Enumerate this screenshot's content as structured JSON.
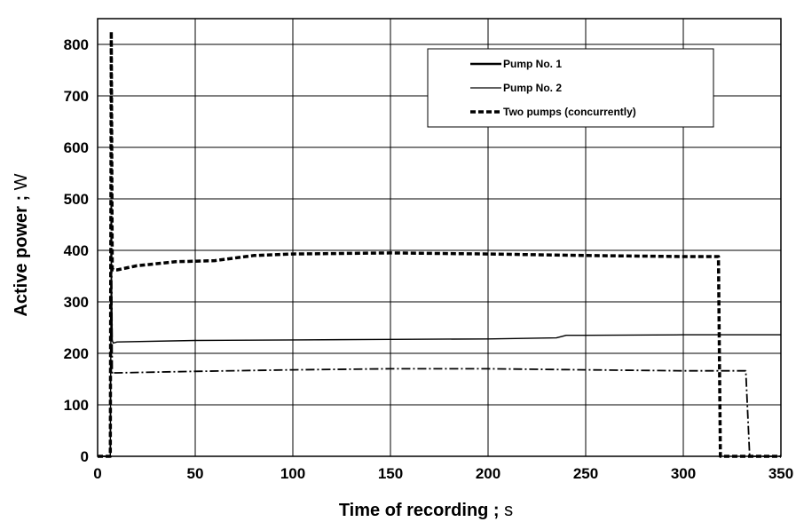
{
  "chart_data": {
    "type": "line",
    "xlabel": "Time of recording ; ",
    "xunit": "s",
    "ylabel": "Active power ; ",
    "yunit": "W",
    "xlim": [
      0,
      350
    ],
    "ylim": [
      0,
      850
    ],
    "xticks": [
      "0",
      "50",
      "100",
      "150",
      "200",
      "250",
      "300",
      "350"
    ],
    "yticks": [
      "0",
      "100",
      "200",
      "300",
      "400",
      "500",
      "600",
      "700",
      "800"
    ],
    "grid": true,
    "legend_position": "top-right",
    "series": [
      {
        "name": "Pump No. 1",
        "style": "dash-dot",
        "x": [
          0,
          6.5,
          7,
          7.5,
          8,
          10,
          50,
          100,
          150,
          200,
          250,
          300,
          332,
          334,
          336,
          350
        ],
        "y": [
          0,
          0,
          500,
          160,
          162,
          162,
          165,
          168,
          170,
          170,
          168,
          166,
          166,
          0,
          0,
          0
        ]
      },
      {
        "name": "Pump No. 2",
        "style": "solid-thin",
        "x": [
          0,
          6.5,
          7,
          7.5,
          8,
          10,
          50,
          100,
          150,
          200,
          235,
          240,
          250,
          300,
          350
        ],
        "y": [
          0,
          0,
          400,
          225,
          220,
          222,
          225,
          226,
          227,
          228,
          230,
          235,
          235,
          236,
          236
        ]
      },
      {
        "name": "Two pumps (concurrently)",
        "style": "dashed-thick",
        "x": [
          0,
          6.5,
          7,
          7.5,
          8,
          10,
          20,
          40,
          60,
          70,
          80,
          100,
          150,
          200,
          250,
          300,
          318,
          319,
          320,
          350
        ],
        "y": [
          0,
          0,
          825,
          365,
          362,
          362,
          370,
          378,
          380,
          385,
          390,
          393,
          395,
          393,
          390,
          388,
          388,
          0,
          0,
          0
        ]
      }
    ]
  }
}
